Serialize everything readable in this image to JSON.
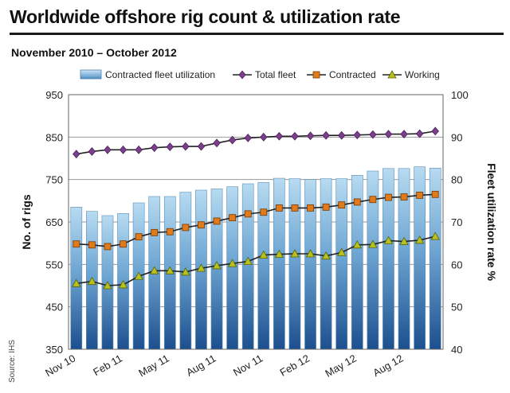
{
  "title": "Worldwide offshore rig count & utilization rate",
  "subtitle": "November 2010 – October 2012",
  "source": "Source: IHS",
  "chart_data": {
    "type": "bar",
    "categories": [
      "Nov 10",
      "Dec 10",
      "Jan 11",
      "Feb 11",
      "Mar 11",
      "Apr 11",
      "May 11",
      "Jun 11",
      "Jul 11",
      "Aug 11",
      "Sep 11",
      "Oct 11",
      "Nov 11",
      "Dec 11",
      "Jan 12",
      "Feb 12",
      "Mar 12",
      "Apr 12",
      "May 12",
      "Jun 12",
      "Jul 12",
      "Aug 12",
      "Sep 12",
      "Oct 12"
    ],
    "x_tick_labels": [
      "Nov 10",
      "Feb 11",
      "May 11",
      "Aug 11",
      "Nov 11",
      "Feb 12",
      "May 12",
      "Aug 12"
    ],
    "ylabel": "No. of rigs",
    "y2label": "Fleet utilization rate %",
    "ylim": [
      350,
      950
    ],
    "yticks": [
      350,
      450,
      550,
      650,
      750,
      850,
      950
    ],
    "y2lim": [
      40,
      100
    ],
    "y2ticks": [
      40,
      50,
      60,
      70,
      80,
      90,
      100
    ],
    "grid": true,
    "legend_position": "top",
    "series": [
      {
        "name": "Contracted fleet utilization",
        "kind": "bar",
        "axis": "right",
        "color": "#8fc0e0",
        "values": [
          73.5,
          72.5,
          71.5,
          72,
          74.5,
          76,
          76,
          77,
          77.5,
          77.8,
          78.3,
          79,
          79.3,
          80.3,
          80.2,
          80,
          80.2,
          80.2,
          81,
          82,
          82.6,
          82.6,
          83,
          82.7
        ]
      },
      {
        "name": "Total fleet",
        "kind": "line",
        "axis": "left",
        "color": "#7b3f8c",
        "marker": "diamond",
        "values": [
          810,
          816,
          820,
          820,
          820,
          825,
          827,
          828,
          828,
          836,
          843,
          848,
          850,
          852,
          852,
          853,
          854,
          854,
          855,
          856,
          857,
          857,
          858,
          864
        ]
      },
      {
        "name": "Contracted",
        "kind": "line",
        "axis": "left",
        "color": "#e07a1a",
        "marker": "square",
        "values": [
          598,
          596,
          592,
          598,
          615,
          625,
          627,
          637,
          643,
          652,
          660,
          669,
          673,
          683,
          683,
          683,
          685,
          690,
          697,
          703,
          708,
          709,
          713,
          715
        ]
      },
      {
        "name": "Working",
        "kind": "line",
        "axis": "left",
        "color": "#b8c11e",
        "marker": "triangle",
        "values": [
          505,
          510,
          500,
          502,
          522,
          535,
          535,
          532,
          541,
          547,
          552,
          557,
          572,
          574,
          575,
          575,
          570,
          578,
          596,
          597,
          606,
          604,
          607,
          616
        ]
      }
    ]
  }
}
